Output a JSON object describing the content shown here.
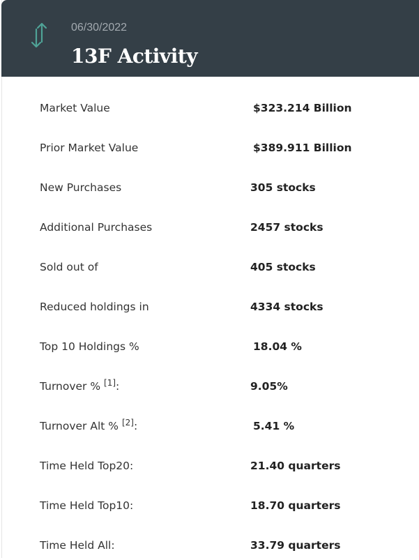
{
  "header": {
    "date": "06/30/2022",
    "title": "13F Activity",
    "icon": "arrows-up-down-icon",
    "accent": "#4fa397",
    "background": "#343f47"
  },
  "rows": [
    {
      "label": "Market Value",
      "value": "$323.214 Billion"
    },
    {
      "label": "Prior Market Value",
      "value": "$389.911 Billion"
    },
    {
      "label": "New Purchases",
      "value": "305 stocks"
    },
    {
      "label": "Additional Purchases",
      "value": "2457 stocks"
    },
    {
      "label": "Sold out of",
      "value": "405 stocks"
    },
    {
      "label": "Reduced holdings in",
      "value": "4334 stocks"
    },
    {
      "label": "Top 10 Holdings %",
      "value": "18.04 %"
    },
    {
      "label": "Turnover % ",
      "footnote": "[1]",
      "suffix": ":",
      "value": "9.05%"
    },
    {
      "label": "Turnover Alt % ",
      "footnote": "[2]",
      "suffix": ":",
      "value": "5.41 %"
    },
    {
      "label": "Time Held Top20:",
      "value": "21.40 quarters"
    },
    {
      "label": "Time Held Top10:",
      "value": "18.70 quarters"
    },
    {
      "label": "Time Held All:",
      "value": "33.79 quarters"
    }
  ]
}
